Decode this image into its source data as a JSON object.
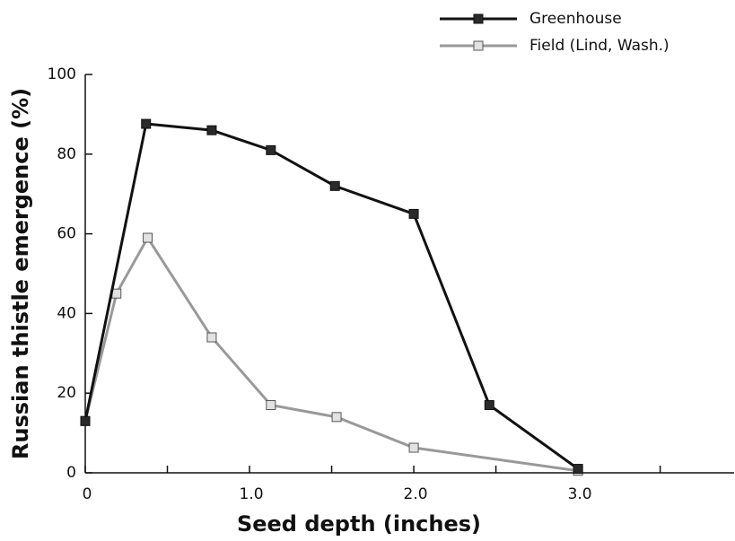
{
  "chart_data": {
    "type": "line",
    "xlabel": "Seed depth (inches)",
    "ylabel": "Russian thistle emergence (%)",
    "xlim": [
      0,
      3.95
    ],
    "ylim": [
      0,
      100
    ],
    "xticks": [
      0,
      {
        "value": 1,
        "label": "1.0"
      },
      {
        "value": 2,
        "label": "2.0"
      },
      {
        "value": 3,
        "label": "3.0"
      }
    ],
    "xminor_ticks": [
      0.5,
      1.5,
      2.5,
      3.5
    ],
    "yticks": [
      0,
      20,
      40,
      60,
      80,
      100
    ],
    "legend": "top-right",
    "series": [
      {
        "name": "Greenhouse",
        "color": "#111111",
        "marker_fill": "#2a2a2a",
        "x": [
          0,
          0.37,
          0.77,
          1.13,
          1.52,
          2.0,
          2.46,
          3.0
        ],
        "values": [
          13,
          87.6,
          86,
          81,
          72,
          65,
          17,
          1
        ]
      },
      {
        "name": "Field (Lind, Wash.)",
        "color": "#999999",
        "marker_fill": "#e2e2e2",
        "x": [
          0,
          0.19,
          0.38,
          0.77,
          1.13,
          1.53,
          2.0,
          3.0
        ],
        "values": [
          13,
          45,
          59,
          34,
          17,
          14,
          6.3,
          0.5
        ]
      }
    ]
  }
}
